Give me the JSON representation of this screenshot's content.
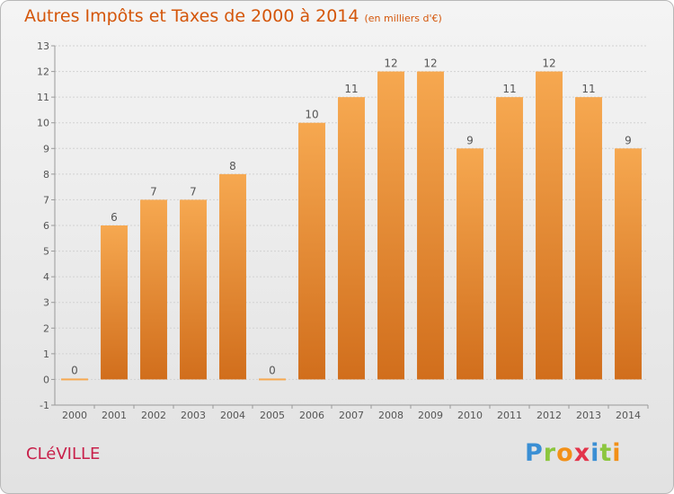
{
  "title": "Autres Impôts et Taxes de 2000 à 2014",
  "subtitle": "(en milliers d'€)",
  "commune": "CLéVILLE",
  "logo": {
    "p": "P",
    "r": "r",
    "o": "o",
    "x": "x",
    "i1": "i",
    "t": "t",
    "i2": "i"
  },
  "colors": {
    "bar_top": "#f6a850",
    "bar_bottom": "#d16e1c",
    "title": "#d4560a",
    "commune": "#c8204a"
  },
  "chart_data": {
    "type": "bar",
    "categories": [
      "2000",
      "2001",
      "2002",
      "2003",
      "2004",
      "2005",
      "2006",
      "2007",
      "2008",
      "2009",
      "2010",
      "2011",
      "2012",
      "2013",
      "2014"
    ],
    "values": [
      0,
      6,
      7,
      7,
      8,
      0,
      10,
      11,
      12,
      12,
      9,
      11,
      12,
      11,
      9
    ],
    "title": "Autres Impôts et Taxes de 2000 à 2014",
    "ylim": [
      -1,
      13
    ],
    "yticks": [
      -1,
      0,
      1,
      2,
      3,
      4,
      5,
      6,
      7,
      8,
      9,
      10,
      11,
      12,
      13
    ],
    "grid": true
  }
}
